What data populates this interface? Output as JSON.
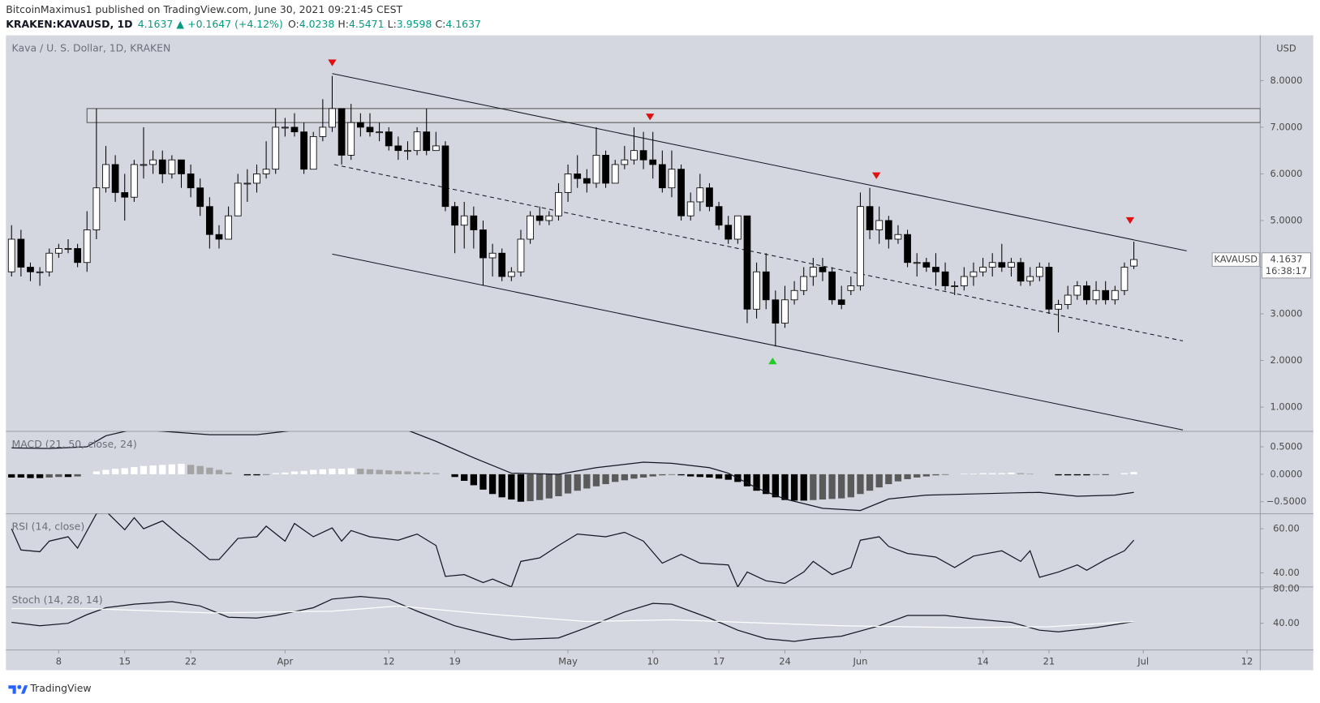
{
  "header": {
    "line1": "BitcoinMaximus1 published on TradingView.com, June 30, 2021 09:21:45 CEST",
    "symbol": "KRAKEN:KAVAUSD, 1D",
    "last": "4.1637",
    "arrow": "▲",
    "change": "+0.1647 (+4.12%)",
    "ohlc": [
      [
        "O:",
        "4.0238"
      ],
      [
        "H:",
        "4.5471"
      ],
      [
        "L:",
        "3.9598"
      ],
      [
        "C:",
        "4.1637"
      ]
    ],
    "up_color": "#089981"
  },
  "price_label": {
    "symbol": "KAVAUSD",
    "price": "4.1637",
    "countdown": "16:38:17"
  },
  "footer": {
    "brand": "TradingView"
  },
  "chart_data": [
    {
      "type": "candlestick",
      "title": "Kava / U. S. Dollar, 1D, KRAKEN",
      "unit": "USD",
      "xlim": [
        -0.6,
        132.4
      ],
      "xticks": [
        {
          "value": 5,
          "label": "8"
        },
        {
          "value": 12,
          "label": "15"
        },
        {
          "value": 19,
          "label": "22"
        },
        {
          "value": 29,
          "label": "Apr"
        },
        {
          "value": 40,
          "label": "12"
        },
        {
          "value": 47,
          "label": "19"
        },
        {
          "value": 59,
          "label": "May"
        },
        {
          "value": 68,
          "label": "10"
        },
        {
          "value": 75,
          "label": "17"
        },
        {
          "value": 82,
          "label": "24"
        },
        {
          "value": 90,
          "label": "Jun"
        },
        {
          "value": 103,
          "label": "14"
        },
        {
          "value": 110,
          "label": "21"
        },
        {
          "value": 120,
          "label": "Jul"
        },
        {
          "value": 131,
          "label": "12"
        }
      ],
      "ylim": [
        0.48,
        8.97
      ],
      "yticks": [
        {
          "value": 1,
          "label": "1.0000"
        },
        {
          "value": 2,
          "label": "2.0000"
        },
        {
          "value": 3,
          "label": "3.0000"
        },
        {
          "value": 4,
          "label": "4.0000"
        },
        {
          "value": 5,
          "label": "5.0000"
        },
        {
          "value": 6,
          "label": "6.0000"
        },
        {
          "value": 7,
          "label": "7.0000"
        },
        {
          "value": 8,
          "label": "8.0000"
        }
      ],
      "up_color": "#ffffff",
      "down_color": "#000000",
      "wick_color": "#000000",
      "open": [
        3.9,
        4.6,
        4.0,
        3.9,
        3.9,
        4.3,
        4.4,
        4.4,
        4.1,
        4.8,
        5.7,
        6.2,
        5.6,
        5.5,
        6.2,
        6.2,
        6.3,
        6.0,
        6.3,
        6.0,
        5.7,
        5.3,
        4.7,
        4.6,
        5.1,
        5.8,
        5.8,
        6.0,
        6.1,
        7.0,
        7.0,
        6.9,
        6.1,
        6.8,
        7.0,
        7.4,
        6.4,
        7.1,
        7.0,
        6.9,
        6.9,
        6.6,
        6.5,
        6.5,
        6.9,
        6.5,
        6.6,
        5.3,
        4.9,
        5.1,
        4.8,
        4.2,
        4.3,
        3.8,
        3.9,
        4.6,
        5.1,
        5.0,
        5.1,
        5.6,
        6.0,
        5.9,
        5.8,
        6.4,
        5.8,
        6.2,
        6.3,
        6.5,
        6.3,
        6.2,
        5.7,
        6.1,
        5.1,
        5.4,
        5.7,
        5.3,
        4.9,
        4.6,
        5.1,
        3.1,
        3.9,
        3.3,
        2.8,
        3.3,
        3.5,
        3.8,
        4.0,
        3.9,
        3.3,
        3.5,
        3.6,
        5.3,
        4.8,
        5.0,
        4.6,
        4.7,
        4.1,
        4.1,
        4.0,
        3.9,
        3.6,
        3.6,
        3.8,
        3.9,
        4.0,
        4.1,
        4.0,
        4.1,
        3.7,
        3.8,
        4.0,
        3.1,
        3.2,
        3.4,
        3.6,
        3.3,
        3.5,
        3.3,
        3.5,
        4.0238
      ],
      "high": [
        4.9,
        4.8,
        4.1,
        4.0,
        4.4,
        4.5,
        4.6,
        4.5,
        5.2,
        7.4,
        6.6,
        6.4,
        6.0,
        6.3,
        7.0,
        6.5,
        6.5,
        6.4,
        6.3,
        6.2,
        5.9,
        5.5,
        4.9,
        5.3,
        6.0,
        6.1,
        6.2,
        6.7,
        7.4,
        7.2,
        7.3,
        7.1,
        6.9,
        7.6,
        8.1,
        7.4,
        7.5,
        7.3,
        7.3,
        7.1,
        7.0,
        6.8,
        6.7,
        7.0,
        7.4,
        6.9,
        6.7,
        5.4,
        5.4,
        5.3,
        5.0,
        4.5,
        4.4,
        4.0,
        4.8,
        5.2,
        5.3,
        5.2,
        5.8,
        6.2,
        6.4,
        6.1,
        7.0,
        6.5,
        6.3,
        6.6,
        7.0,
        6.9,
        6.9,
        6.5,
        6.5,
        6.2,
        5.6,
        6.0,
        5.8,
        5.4,
        5.1,
        5.1,
        5.1,
        4.1,
        4.3,
        3.5,
        3.6,
        3.7,
        4.0,
        4.2,
        4.2,
        4.0,
        3.6,
        3.8,
        5.6,
        5.7,
        5.3,
        5.1,
        4.9,
        4.8,
        4.3,
        4.2,
        4.3,
        4.1,
        3.7,
        4.0,
        4.1,
        4.2,
        4.3,
        4.5,
        4.2,
        4.2,
        4.0,
        4.1,
        4.1,
        3.3,
        3.6,
        3.7,
        3.7,
        3.7,
        3.7,
        3.6,
        4.1,
        4.5471
      ],
      "low": [
        3.8,
        3.8,
        3.7,
        3.6,
        3.8,
        4.2,
        4.3,
        4.0,
        3.9,
        4.6,
        5.6,
        5.4,
        5.0,
        5.4,
        5.9,
        6.0,
        5.8,
        5.9,
        5.7,
        5.5,
        5.1,
        4.4,
        4.4,
        4.6,
        5.1,
        5.4,
        5.6,
        5.9,
        6.0,
        6.8,
        6.8,
        6.0,
        6.1,
        6.7,
        6.9,
        6.2,
        6.3,
        6.8,
        6.8,
        6.7,
        6.5,
        6.3,
        6.3,
        6.4,
        6.4,
        6.5,
        5.2,
        4.3,
        4.4,
        4.4,
        3.6,
        3.8,
        3.7,
        3.7,
        3.8,
        4.5,
        4.9,
        4.9,
        5.0,
        5.4,
        5.7,
        5.6,
        5.7,
        5.7,
        5.8,
        6.1,
        6.2,
        6.1,
        5.9,
        5.6,
        5.5,
        5.0,
        5.0,
        5.2,
        5.2,
        4.8,
        4.5,
        4.5,
        2.8,
        2.9,
        3.1,
        2.3,
        2.7,
        3.2,
        3.4,
        3.6,
        3.7,
        3.2,
        3.1,
        3.4,
        3.5,
        4.6,
        4.5,
        4.4,
        4.5,
        4.0,
        3.8,
        3.9,
        3.6,
        3.5,
        3.4,
        3.5,
        3.6,
        3.8,
        3.8,
        3.9,
        3.8,
        3.6,
        3.6,
        3.7,
        3.0,
        2.6,
        3.1,
        3.3,
        3.2,
        3.2,
        3.2,
        3.2,
        3.4,
        3.9598
      ],
      "close": [
        4.6,
        4.0,
        3.9,
        3.9,
        4.3,
        4.4,
        4.4,
        4.1,
        4.8,
        5.7,
        6.2,
        5.6,
        5.5,
        6.2,
        6.2,
        6.3,
        6.0,
        6.3,
        6.0,
        5.7,
        5.3,
        4.7,
        4.6,
        5.1,
        5.8,
        5.8,
        6.0,
        6.1,
        7.0,
        7.0,
        6.9,
        6.1,
        6.8,
        7.0,
        7.4,
        6.4,
        7.1,
        7.0,
        6.9,
        6.9,
        6.6,
        6.5,
        6.5,
        6.9,
        6.5,
        6.6,
        5.3,
        4.9,
        5.1,
        4.8,
        4.2,
        4.3,
        3.8,
        3.9,
        4.6,
        5.1,
        5.0,
        5.1,
        5.6,
        6.0,
        5.9,
        5.8,
        6.4,
        5.8,
        6.2,
        6.3,
        6.5,
        6.3,
        6.2,
        5.7,
        6.1,
        5.1,
        5.4,
        5.7,
        5.3,
        4.9,
        4.6,
        5.1,
        3.1,
        3.9,
        3.3,
        2.8,
        3.3,
        3.5,
        3.8,
        4.0,
        3.9,
        3.3,
        3.2,
        3.6,
        5.3,
        4.8,
        5.0,
        4.6,
        4.7,
        4.1,
        4.1,
        4.0,
        3.9,
        3.6,
        3.6,
        3.8,
        3.9,
        4.0,
        4.1,
        4.0,
        4.1,
        3.7,
        3.8,
        4.0,
        3.1,
        3.2,
        3.4,
        3.6,
        3.3,
        3.5,
        3.3,
        3.5,
        4.0,
        4.1637
      ],
      "trendlines": [
        {
          "points": [
            [
              34,
              8.15
            ],
            [
              124.6,
              4.35
            ]
          ],
          "style": "solid",
          "color": "#131722"
        },
        {
          "points": [
            [
              34.2,
              6.2
            ],
            [
              124.2,
              2.42
            ]
          ],
          "style": "dashed",
          "color": "#131722"
        },
        {
          "points": [
            [
              34,
              4.28
            ],
            [
              124.2,
              0.51
            ]
          ],
          "style": "solid",
          "color": "#131722"
        }
      ],
      "zone": {
        "x0": 8,
        "y": [
          7.1,
          7.4
        ],
        "color": "#555555"
      },
      "markers": [
        {
          "x": 34,
          "y": 8.38,
          "shape": "down",
          "color": "#e01010"
        },
        {
          "x": 67.7,
          "y": 7.22,
          "shape": "down",
          "color": "#e01010"
        },
        {
          "x": 91.7,
          "y": 5.96,
          "shape": "down",
          "color": "#e01010"
        },
        {
          "x": 118.6,
          "y": 5.0,
          "shape": "down",
          "color": "#e01010"
        },
        {
          "x": 80.7,
          "y": 1.99,
          "shape": "up",
          "color": "#22cc22"
        }
      ]
    },
    {
      "type": "macd",
      "title": "MACD (21, 50, close, 24)",
      "ylim": [
        -0.72,
        0.78
      ],
      "yticks": [
        {
          "value": 0.5,
          "label": "0.5000"
        },
        {
          "value": 0,
          "label": "0.0000"
        },
        {
          "value": -0.5,
          "label": "−0.5000"
        }
      ],
      "histogram": [
        -0.06,
        -0.06,
        -0.07,
        -0.07,
        -0.06,
        -0.05,
        -0.05,
        -0.04,
        0.0,
        0.05,
        0.08,
        0.1,
        0.11,
        0.13,
        0.15,
        0.16,
        0.17,
        0.18,
        0.19,
        0.17,
        0.15,
        0.12,
        0.08,
        0.03,
        0.0,
        -0.02,
        -0.02,
        -0.01,
        0.02,
        0.03,
        0.05,
        0.06,
        0.08,
        0.09,
        0.1,
        0.1,
        0.11,
        0.1,
        0.09,
        0.08,
        0.07,
        0.06,
        0.05,
        0.04,
        0.03,
        0.02,
        0.0,
        -0.05,
        -0.12,
        -0.2,
        -0.28,
        -0.36,
        -0.42,
        -0.46,
        -0.5,
        -0.49,
        -0.47,
        -0.44,
        -0.4,
        -0.35,
        -0.3,
        -0.26,
        -0.22,
        -0.18,
        -0.14,
        -0.11,
        -0.08,
        -0.06,
        -0.04,
        -0.02,
        -0.01,
        -0.02,
        -0.04,
        -0.05,
        -0.06,
        -0.08,
        -0.1,
        -0.14,
        -0.22,
        -0.3,
        -0.36,
        -0.42,
        -0.47,
        -0.48,
        -0.48,
        -0.47,
        -0.46,
        -0.45,
        -0.44,
        -0.42,
        -0.36,
        -0.3,
        -0.24,
        -0.18,
        -0.13,
        -0.09,
        -0.06,
        -0.04,
        -0.02,
        -0.01,
        0.0,
        0.01,
        0.01,
        0.02,
        0.02,
        0.02,
        0.03,
        0.02,
        0.01,
        0.0,
        0.0,
        -0.02,
        -0.02,
        -0.02,
        -0.02,
        -0.01,
        -0.01,
        0.0,
        0.02,
        0.04
      ],
      "histogram_colors": {
        "positive_rising": "#ffffff",
        "positive_falling": "#a3a3a3",
        "negative_falling": "#000000",
        "negative_rising": "#5a5a5a"
      },
      "series": [
        {
          "color": "#131722",
          "x": [
            0,
            4,
            8,
            10,
            13,
            21,
            26,
            30,
            42,
            45,
            49,
            53,
            58,
            62,
            67,
            70,
            74,
            76,
            79,
            82,
            86,
            90,
            93,
            97,
            106,
            109,
            113,
            117,
            119
          ],
          "values": [
            0.48,
            0.47,
            0.5,
            0.7,
            0.82,
            0.72,
            0.72,
            0.8,
            0.8,
            0.6,
            0.3,
            0.02,
            0.0,
            0.12,
            0.22,
            0.2,
            0.12,
            0.02,
            -0.25,
            -0.45,
            -0.62,
            -0.66,
            -0.45,
            -0.38,
            -0.34,
            -0.33,
            -0.4,
            -0.38,
            -0.33
          ]
        }
      ]
    },
    {
      "type": "line",
      "title": "RSI (14, close)",
      "ylim": [
        33.6,
        66.8
      ],
      "yticks": [
        {
          "value": 60,
          "label": "60.00"
        },
        {
          "value": 40,
          "label": "40.00"
        }
      ],
      "series": [
        {
          "color": "#131722",
          "x": [
            0,
            1,
            3,
            4,
            6,
            7,
            9,
            10,
            12,
            13,
            14,
            16,
            18,
            19,
            21,
            22,
            24,
            26,
            27,
            29,
            30,
            32,
            34,
            35,
            36,
            38,
            41,
            43,
            45,
            46,
            48,
            50,
            51,
            53,
            54,
            56,
            58,
            60,
            63,
            65,
            67,
            69,
            71,
            73,
            76,
            77,
            78,
            80,
            82,
            84,
            85,
            87,
            89,
            90,
            92,
            93,
            95,
            98,
            100,
            102,
            105,
            107,
            108,
            109,
            111,
            113,
            114,
            116,
            118,
            119
          ],
          "values": [
            60,
            50.4,
            49.6,
            54.4,
            56.4,
            51.2,
            66.8,
            68,
            59.6,
            65,
            60,
            63.6,
            56.4,
            53.2,
            46,
            46,
            55.6,
            56.4,
            61.2,
            54.4,
            62.4,
            56.4,
            60.4,
            54.4,
            59.2,
            56.4,
            54.8,
            57.6,
            52.4,
            38.4,
            39.2,
            35.6,
            37.2,
            33.6,
            45.2,
            46.8,
            52.4,
            57.6,
            56.4,
            58.4,
            54.4,
            44.4,
            48.4,
            44.4,
            43.6,
            33.6,
            40.4,
            36.4,
            35.2,
            40.4,
            45.2,
            39.2,
            42.4,
            54.8,
            56.4,
            52,
            48.8,
            47.2,
            42.4,
            47.6,
            50,
            45.2,
            50,
            38,
            40.4,
            43.6,
            41.2,
            46,
            50,
            54.8
          ]
        }
      ]
    },
    {
      "type": "line",
      "title": "Stoch (14, 28, 14)",
      "ylim": [
        9,
        82
      ],
      "yticks": [
        {
          "value": 80,
          "label": "80.00"
        },
        {
          "value": 40,
          "label": "40.00"
        }
      ],
      "series": [
        {
          "color": "#131722",
          "x": [
            0,
            3,
            6,
            8,
            10,
            13,
            17,
            20,
            23,
            26,
            28,
            32,
            34,
            37,
            40,
            43,
            47,
            51,
            53,
            58,
            61,
            65,
            68,
            70,
            74,
            77,
            80,
            83,
            85,
            88,
            92,
            95,
            99,
            102,
            106,
            109,
            111,
            115,
            119
          ],
          "values": [
            41,
            37,
            40,
            50,
            58,
            62,
            65,
            60,
            47,
            46,
            49,
            58,
            68,
            71,
            68,
            54,
            37,
            26,
            21,
            23,
            35,
            53,
            63,
            62,
            46,
            32,
            22,
            19,
            22,
            25,
            37,
            49,
            49,
            45,
            41,
            32,
            30,
            35,
            42
          ]
        },
        {
          "color": "#ffffff",
          "x": [
            0,
            8,
            21,
            34,
            41,
            49,
            61,
            70,
            88,
            101,
            110,
            119
          ],
          "values": [
            57,
            57,
            52,
            54,
            60,
            52,
            42,
            44,
            37,
            35,
            36,
            42
          ]
        }
      ]
    }
  ]
}
